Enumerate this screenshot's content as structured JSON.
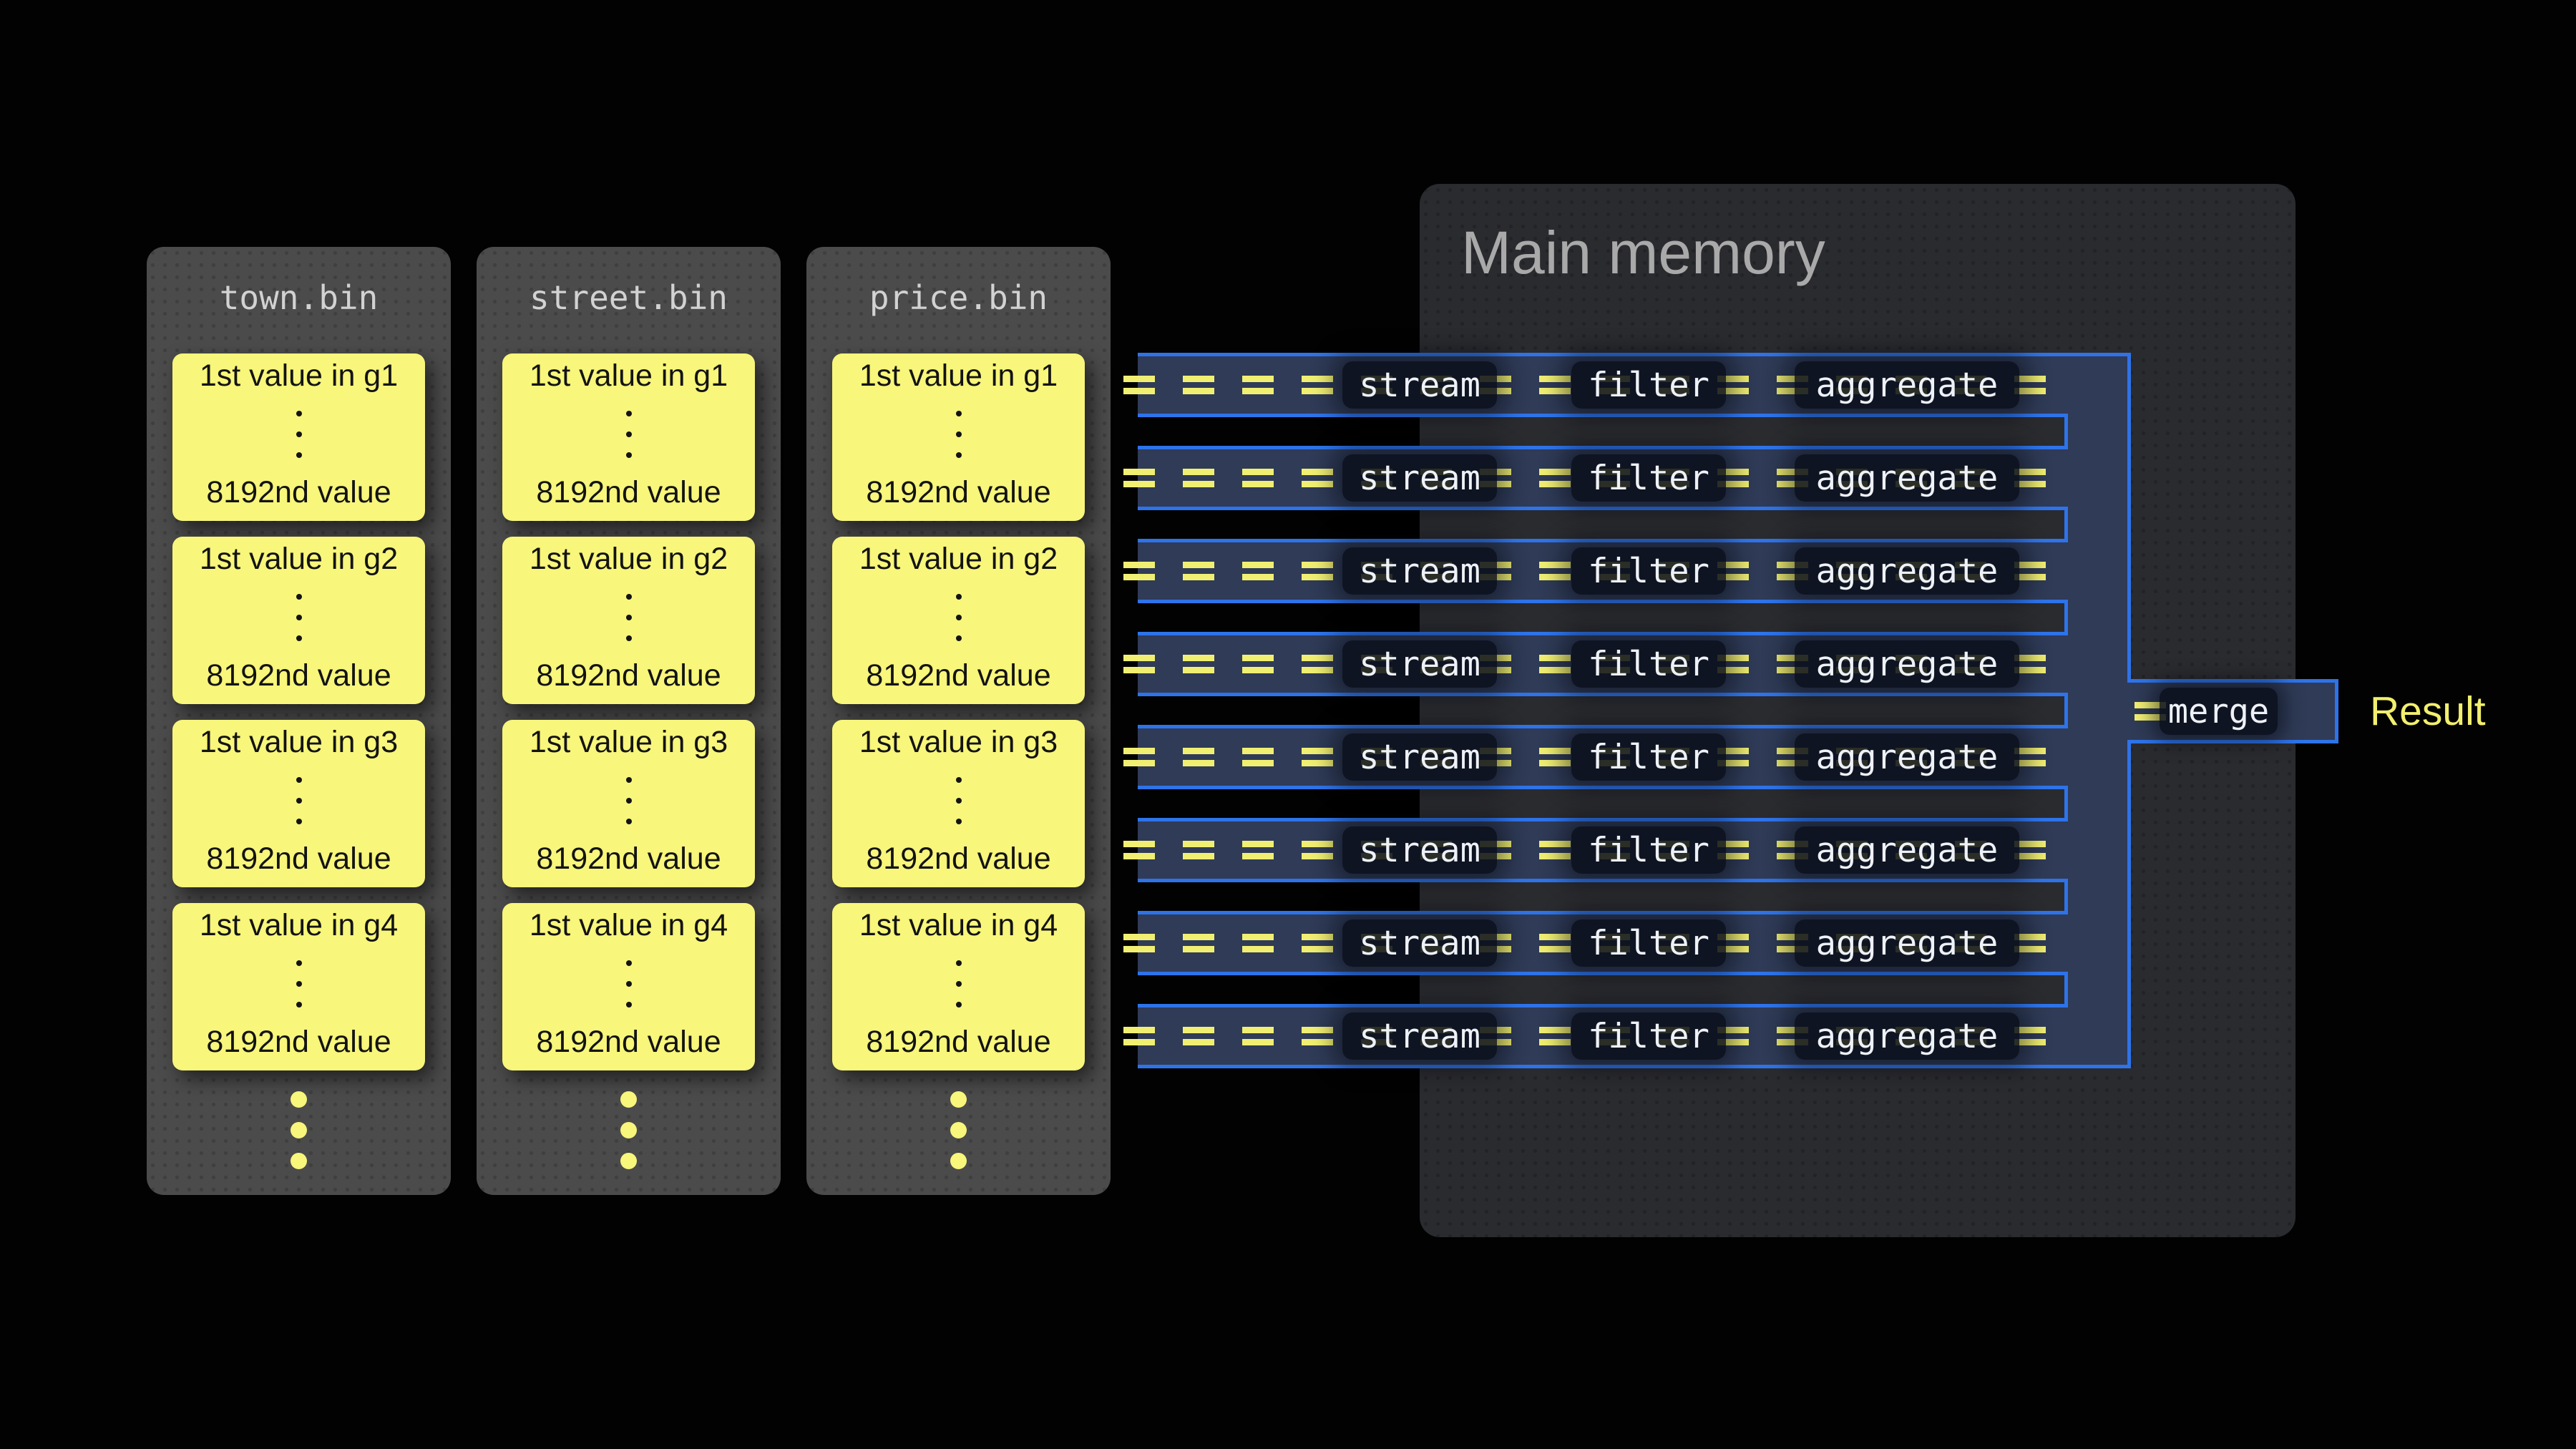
{
  "files": [
    {
      "name": "town.bin",
      "groups": [
        {
          "first": "1st value in g1",
          "last": "8192nd value"
        },
        {
          "first": "1st value in g2",
          "last": "8192nd value"
        },
        {
          "first": "1st value in g3",
          "last": "8192nd value"
        },
        {
          "first": "1st value in g4",
          "last": "8192nd value"
        }
      ]
    },
    {
      "name": "street.bin",
      "groups": [
        {
          "first": "1st value in g1",
          "last": "8192nd value"
        },
        {
          "first": "1st value in g2",
          "last": "8192nd value"
        },
        {
          "first": "1st value in g3",
          "last": "8192nd value"
        },
        {
          "first": "1st value in g4",
          "last": "8192nd value"
        }
      ]
    },
    {
      "name": "price.bin",
      "groups": [
        {
          "first": "1st value in g1",
          "last": "8192nd value"
        },
        {
          "first": "1st value in g2",
          "last": "8192nd value"
        },
        {
          "first": "1st value in g3",
          "last": "8192nd value"
        },
        {
          "first": "1st value in g4",
          "last": "8192nd value"
        }
      ]
    }
  ],
  "main_memory": {
    "title": "Main memory"
  },
  "pipelines": {
    "rows": 8,
    "stages": [
      "stream",
      "filter",
      "aggregate"
    ]
  },
  "merge_label": "merge",
  "result_label": "Result",
  "colors": {
    "background": "#020202",
    "file_box": "#4b4b4b",
    "file_title": "#d2d2d2",
    "value_block": "#f8f67b",
    "memory_box": "#2a2b2f",
    "memory_title": "#a9a9a9",
    "pipe_fill": "#2f3b57",
    "pipe_border": "#2e73e9",
    "dash_yellow": "#f1ef72",
    "label_text": "#eef1f6",
    "result_text": "#f2ef6e"
  }
}
